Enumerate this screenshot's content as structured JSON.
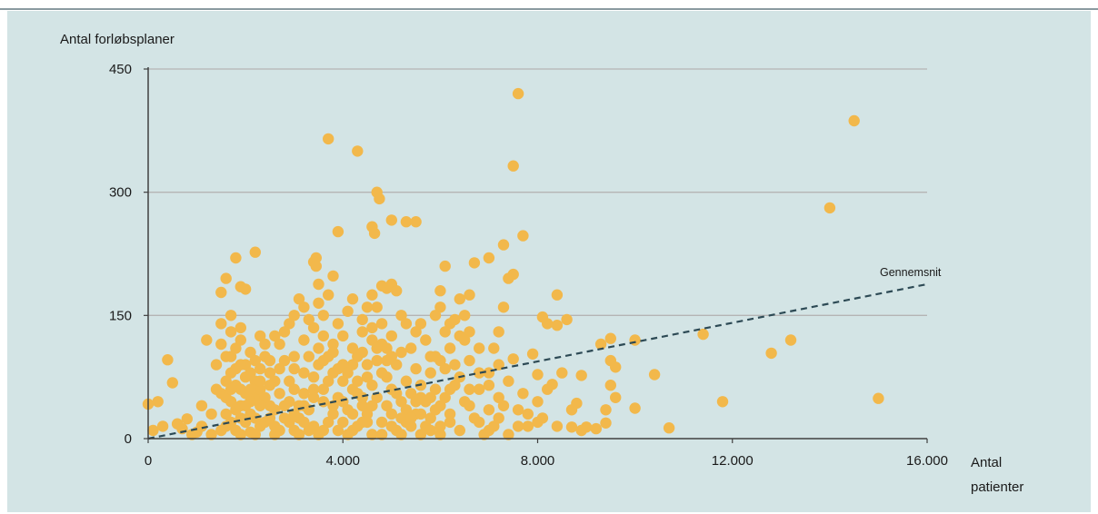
{
  "chart_data": {
    "type": "scatter",
    "ylabel": "Antal forløbsplaner",
    "xlabel_lines": [
      "Antal",
      "patienter"
    ],
    "xlim": [
      0,
      16000
    ],
    "ylim": [
      0,
      450
    ],
    "xticks": [
      0,
      4000,
      8000,
      12000,
      16000
    ],
    "xtick_labels": [
      "0",
      "4.000",
      "8.000",
      "12.000",
      "16.000"
    ],
    "yticks": [
      0,
      150,
      300,
      450
    ],
    "ytick_labels": [
      "0",
      "150",
      "300",
      "450"
    ],
    "grid": "horizontal",
    "colors": {
      "point": "#f2b84b",
      "trend": "#2d4a55",
      "grid": "#b4b4b4",
      "axis": "#404040",
      "background": "#d3e4e5"
    },
    "trendline": {
      "label": "Gennemsnit",
      "style": "dashed",
      "x": [
        0,
        16000
      ],
      "y": [
        0,
        188
      ]
    },
    "points": [
      [
        7600,
        420
      ],
      [
        14500,
        387
      ],
      [
        3700,
        365
      ],
      [
        4300,
        350
      ],
      [
        7500,
        332
      ],
      [
        4700,
        300
      ],
      [
        4750,
        292
      ],
      [
        14000,
        281
      ],
      [
        5000,
        266
      ],
      [
        5300,
        264
      ],
      [
        5500,
        264
      ],
      [
        4600,
        258
      ],
      [
        4650,
        250
      ],
      [
        3900,
        252
      ],
      [
        7700,
        247
      ],
      [
        7300,
        236
      ],
      [
        2200,
        227
      ],
      [
        1800,
        220
      ],
      [
        3450,
        220
      ],
      [
        3400,
        215
      ],
      [
        3450,
        210
      ],
      [
        6100,
        210
      ],
      [
        7000,
        220
      ],
      [
        6700,
        214
      ],
      [
        1600,
        195
      ],
      [
        3800,
        198
      ],
      [
        7500,
        200
      ],
      [
        7400,
        195
      ],
      [
        1900,
        185
      ],
      [
        2000,
        182
      ],
      [
        1500,
        178
      ],
      [
        3500,
        188
      ],
      [
        4800,
        186
      ],
      [
        5000,
        188
      ],
      [
        4900,
        183
      ],
      [
        5100,
        180
      ],
      [
        6000,
        180
      ],
      [
        7300,
        160
      ],
      [
        6600,
        175
      ],
      [
        8400,
        175
      ],
      [
        15000,
        49
      ],
      [
        11800,
        45
      ],
      [
        12800,
        104
      ],
      [
        13200,
        120
      ],
      [
        11400,
        127
      ],
      [
        10000,
        120
      ],
      [
        9500,
        122
      ],
      [
        10700,
        13
      ],
      [
        10400,
        78
      ],
      [
        10000,
        37
      ],
      [
        9500,
        65
      ],
      [
        9300,
        115
      ],
      [
        9200,
        12
      ],
      [
        9000,
        14
      ],
      [
        8900,
        77
      ],
      [
        8700,
        14
      ],
      [
        8600,
        145
      ],
      [
        8400,
        138
      ],
      [
        8200,
        140
      ],
      [
        8100,
        148
      ],
      [
        7900,
        103
      ],
      [
        8000,
        78
      ],
      [
        8300,
        66
      ],
      [
        8500,
        80
      ],
      [
        8700,
        35
      ],
      [
        8800,
        43
      ],
      [
        8900,
        10
      ],
      [
        9400,
        19
      ],
      [
        9400,
        35
      ],
      [
        9600,
        50
      ],
      [
        9500,
        95
      ],
      [
        9600,
        87
      ],
      [
        8000,
        20
      ],
      [
        8100,
        25
      ],
      [
        7800,
        15
      ],
      [
        7600,
        35
      ],
      [
        7700,
        55
      ],
      [
        7500,
        97
      ],
      [
        7200,
        130
      ],
      [
        7100,
        110
      ],
      [
        0,
        42
      ],
      [
        200,
        45
      ],
      [
        400,
        96
      ],
      [
        500,
        68
      ],
      [
        100,
        10
      ],
      [
        300,
        15
      ],
      [
        600,
        18
      ],
      [
        800,
        24
      ],
      [
        1000,
        8
      ],
      [
        1200,
        120
      ],
      [
        1400,
        90
      ],
      [
        1500,
        55
      ],
      [
        1300,
        30
      ],
      [
        1100,
        40
      ],
      [
        2400,
        100
      ],
      [
        2600,
        70
      ],
      [
        2800,
        130
      ],
      [
        3000,
        150
      ],
      [
        3200,
        160
      ],
      [
        3600,
        150
      ],
      [
        3900,
        140
      ],
      [
        4100,
        155
      ],
      [
        4300,
        100
      ],
      [
        4400,
        130
      ],
      [
        4600,
        175
      ],
      [
        4700,
        160
      ],
      [
        5200,
        150
      ],
      [
        5400,
        110
      ],
      [
        5600,
        140
      ],
      [
        5800,
        100
      ],
      [
        6000,
        160
      ],
      [
        6200,
        140
      ],
      [
        6400,
        170
      ],
      [
        6500,
        150
      ],
      [
        6600,
        130
      ],
      [
        6800,
        110
      ],
      [
        7000,
        80
      ],
      [
        5900,
        60
      ],
      [
        5700,
        45
      ],
      [
        5500,
        30
      ],
      [
        5300,
        20
      ],
      [
        5100,
        10
      ],
      [
        4900,
        40
      ],
      [
        4500,
        20
      ],
      [
        4200,
        10
      ],
      [
        3800,
        30
      ],
      [
        3400,
        15
      ],
      [
        3100,
        5
      ],
      [
        2900,
        20
      ],
      [
        2700,
        10
      ],
      [
        2500,
        40
      ],
      [
        2300,
        15
      ],
      [
        2100,
        30
      ],
      [
        1900,
        60
      ],
      [
        1700,
        80
      ],
      [
        1600,
        100
      ],
      [
        1800,
        110
      ],
      [
        2000,
        90
      ],
      [
        2200,
        70
      ],
      [
        1700,
        45
      ],
      [
        1900,
        25
      ],
      [
        2100,
        8
      ],
      [
        1600,
        15
      ],
      [
        1800,
        35
      ],
      [
        2000,
        55
      ],
      [
        2200,
        50
      ],
      [
        2400,
        20
      ],
      [
        2600,
        5
      ],
      [
        3000,
        60
      ],
      [
        3200,
        80
      ],
      [
        3300,
        100
      ],
      [
        3500,
        90
      ],
      [
        3700,
        70
      ],
      [
        3900,
        50
      ],
      [
        4100,
        35
      ],
      [
        4300,
        55
      ],
      [
        4500,
        75
      ],
      [
        4700,
        95
      ],
      [
        4900,
        110
      ],
      [
        5100,
        90
      ],
      [
        5300,
        70
      ],
      [
        5500,
        85
      ],
      [
        5700,
        120
      ],
      [
        5900,
        100
      ],
      [
        6100,
        85
      ],
      [
        6300,
        65
      ],
      [
        6500,
        45
      ],
      [
        6700,
        25
      ],
      [
        6900,
        5
      ],
      [
        7100,
        15
      ],
      [
        7300,
        40
      ],
      [
        6200,
        30
      ],
      [
        6000,
        15
      ],
      [
        5800,
        25
      ],
      [
        5600,
        5
      ],
      [
        5200,
        45
      ],
      [
        5000,
        60
      ],
      [
        4800,
        20
      ],
      [
        4600,
        5
      ],
      [
        4400,
        40
      ],
      [
        4000,
        20
      ],
      [
        3600,
        45
      ],
      [
        3300,
        35
      ],
      [
        3100,
        25
      ],
      [
        2900,
        45
      ],
      [
        2700,
        55
      ],
      [
        2500,
        65
      ],
      [
        2300,
        85
      ],
      [
        2100,
        105
      ],
      [
        1900,
        120
      ],
      [
        1700,
        130
      ],
      [
        1500,
        140
      ],
      [
        1600,
        70
      ],
      [
        1800,
        65
      ],
      [
        2000,
        75
      ],
      [
        2200,
        95
      ],
      [
        2400,
        115
      ],
      [
        2600,
        125
      ],
      [
        2800,
        95
      ],
      [
        3000,
        85
      ],
      [
        3200,
        55
      ],
      [
        3400,
        75
      ],
      [
        3600,
        95
      ],
      [
        3800,
        115
      ],
      [
        4000,
        125
      ],
      [
        4200,
        90
      ],
      [
        4400,
        105
      ],
      [
        4600,
        120
      ],
      [
        4800,
        140
      ],
      [
        5000,
        125
      ],
      [
        5200,
        105
      ],
      [
        5400,
        55
      ],
      [
        5600,
        65
      ],
      [
        5800,
        80
      ],
      [
        6000,
        95
      ],
      [
        6200,
        110
      ],
      [
        6400,
        125
      ],
      [
        6600,
        95
      ],
      [
        6800,
        60
      ],
      [
        7000,
        35
      ],
      [
        7200,
        50
      ],
      [
        7400,
        70
      ],
      [
        6300,
        90
      ],
      [
        6100,
        50
      ],
      [
        5900,
        35
      ],
      [
        5700,
        15
      ],
      [
        5500,
        45
      ],
      [
        5300,
        35
      ],
      [
        5100,
        55
      ],
      [
        4900,
        75
      ],
      [
        4700,
        50
      ],
      [
        4500,
        30
      ],
      [
        4300,
        15
      ],
      [
        4100,
        5
      ],
      [
        3900,
        10
      ],
      [
        3700,
        20
      ],
      [
        3500,
        5
      ],
      [
        3300,
        10
      ],
      [
        3100,
        40
      ],
      [
        2900,
        70
      ],
      [
        2700,
        85
      ],
      [
        2500,
        95
      ],
      [
        2300,
        60
      ],
      [
        2100,
        45
      ],
      [
        1900,
        40
      ],
      [
        1700,
        20
      ],
      [
        1500,
        10
      ],
      [
        1300,
        5
      ],
      [
        1100,
        15
      ],
      [
        900,
        5
      ],
      [
        700,
        12
      ],
      [
        1400,
        60
      ],
      [
        1600,
        50
      ],
      [
        1800,
        85
      ],
      [
        2000,
        20
      ],
      [
        2200,
        25
      ],
      [
        2400,
        50
      ],
      [
        2600,
        35
      ],
      [
        2800,
        40
      ],
      [
        3000,
        30
      ],
      [
        3200,
        20
      ],
      [
        3400,
        50
      ],
      [
        3600,
        60
      ],
      [
        3800,
        80
      ],
      [
        4000,
        70
      ],
      [
        4200,
        60
      ],
      [
        4400,
        50
      ],
      [
        4600,
        65
      ],
      [
        4800,
        80
      ],
      [
        5000,
        30
      ],
      [
        5200,
        25
      ],
      [
        5400,
        15
      ],
      [
        5600,
        30
      ],
      [
        5800,
        50
      ],
      [
        6000,
        40
      ],
      [
        6200,
        20
      ],
      [
        6400,
        10
      ],
      [
        6600,
        40
      ],
      [
        6800,
        20
      ],
      [
        7000,
        10
      ],
      [
        7200,
        25
      ],
      [
        7400,
        5
      ],
      [
        7600,
        15
      ],
      [
        7800,
        30
      ],
      [
        8000,
        45
      ],
      [
        8200,
        60
      ],
      [
        8400,
        15
      ],
      [
        3000,
        100
      ],
      [
        3200,
        120
      ],
      [
        3400,
        135
      ],
      [
        3600,
        125
      ],
      [
        3800,
        105
      ],
      [
        4000,
        90
      ],
      [
        4200,
        110
      ],
      [
        4400,
        145
      ],
      [
        4600,
        135
      ],
      [
        4800,
        115
      ],
      [
        5000,
        100
      ],
      [
        1700,
        100
      ],
      [
        1900,
        90
      ],
      [
        2100,
        80
      ],
      [
        2300,
        70
      ],
      [
        1600,
        30
      ],
      [
        1800,
        10
      ],
      [
        2000,
        40
      ],
      [
        2200,
        5
      ],
      [
        2600,
        15
      ],
      [
        2800,
        25
      ],
      [
        3000,
        10
      ],
      [
        3200,
        40
      ],
      [
        3400,
        60
      ],
      [
        3600,
        10
      ],
      [
        3800,
        40
      ],
      [
        4000,
        45
      ],
      [
        4200,
        30
      ],
      [
        4400,
        20
      ],
      [
        4600,
        40
      ],
      [
        4800,
        5
      ],
      [
        5000,
        15
      ],
      [
        5200,
        5
      ],
      [
        5400,
        25
      ],
      [
        5600,
        50
      ],
      [
        5800,
        10
      ],
      [
        6000,
        5
      ],
      [
        6200,
        60
      ],
      [
        6400,
        75
      ],
      [
        6600,
        60
      ],
      [
        6800,
        80
      ],
      [
        7000,
        65
      ],
      [
        7200,
        90
      ],
      [
        6500,
        120
      ],
      [
        6300,
        145
      ],
      [
        6100,
        130
      ],
      [
        5900,
        150
      ],
      [
        5500,
        130
      ],
      [
        5300,
        140
      ],
      [
        4500,
        160
      ],
      [
        4200,
        170
      ],
      [
        3700,
        175
      ],
      [
        3500,
        165
      ],
      [
        3300,
        145
      ],
      [
        3100,
        170
      ],
      [
        2900,
        140
      ],
      [
        2700,
        115
      ],
      [
        2500,
        80
      ],
      [
        2300,
        125
      ],
      [
        1700,
        150
      ],
      [
        1900,
        135
      ],
      [
        1500,
        115
      ],
      [
        1700,
        60
      ],
      [
        1900,
        5
      ],
      [
        2100,
        60
      ],
      [
        2300,
        40
      ],
      [
        2500,
        25
      ],
      [
        3500,
        110
      ],
      [
        3700,
        100
      ],
      [
        3900,
        85
      ],
      [
        4100,
        80
      ],
      [
        4300,
        70
      ],
      [
        4500,
        90
      ],
      [
        4700,
        110
      ],
      [
        4900,
        95
      ]
    ]
  }
}
